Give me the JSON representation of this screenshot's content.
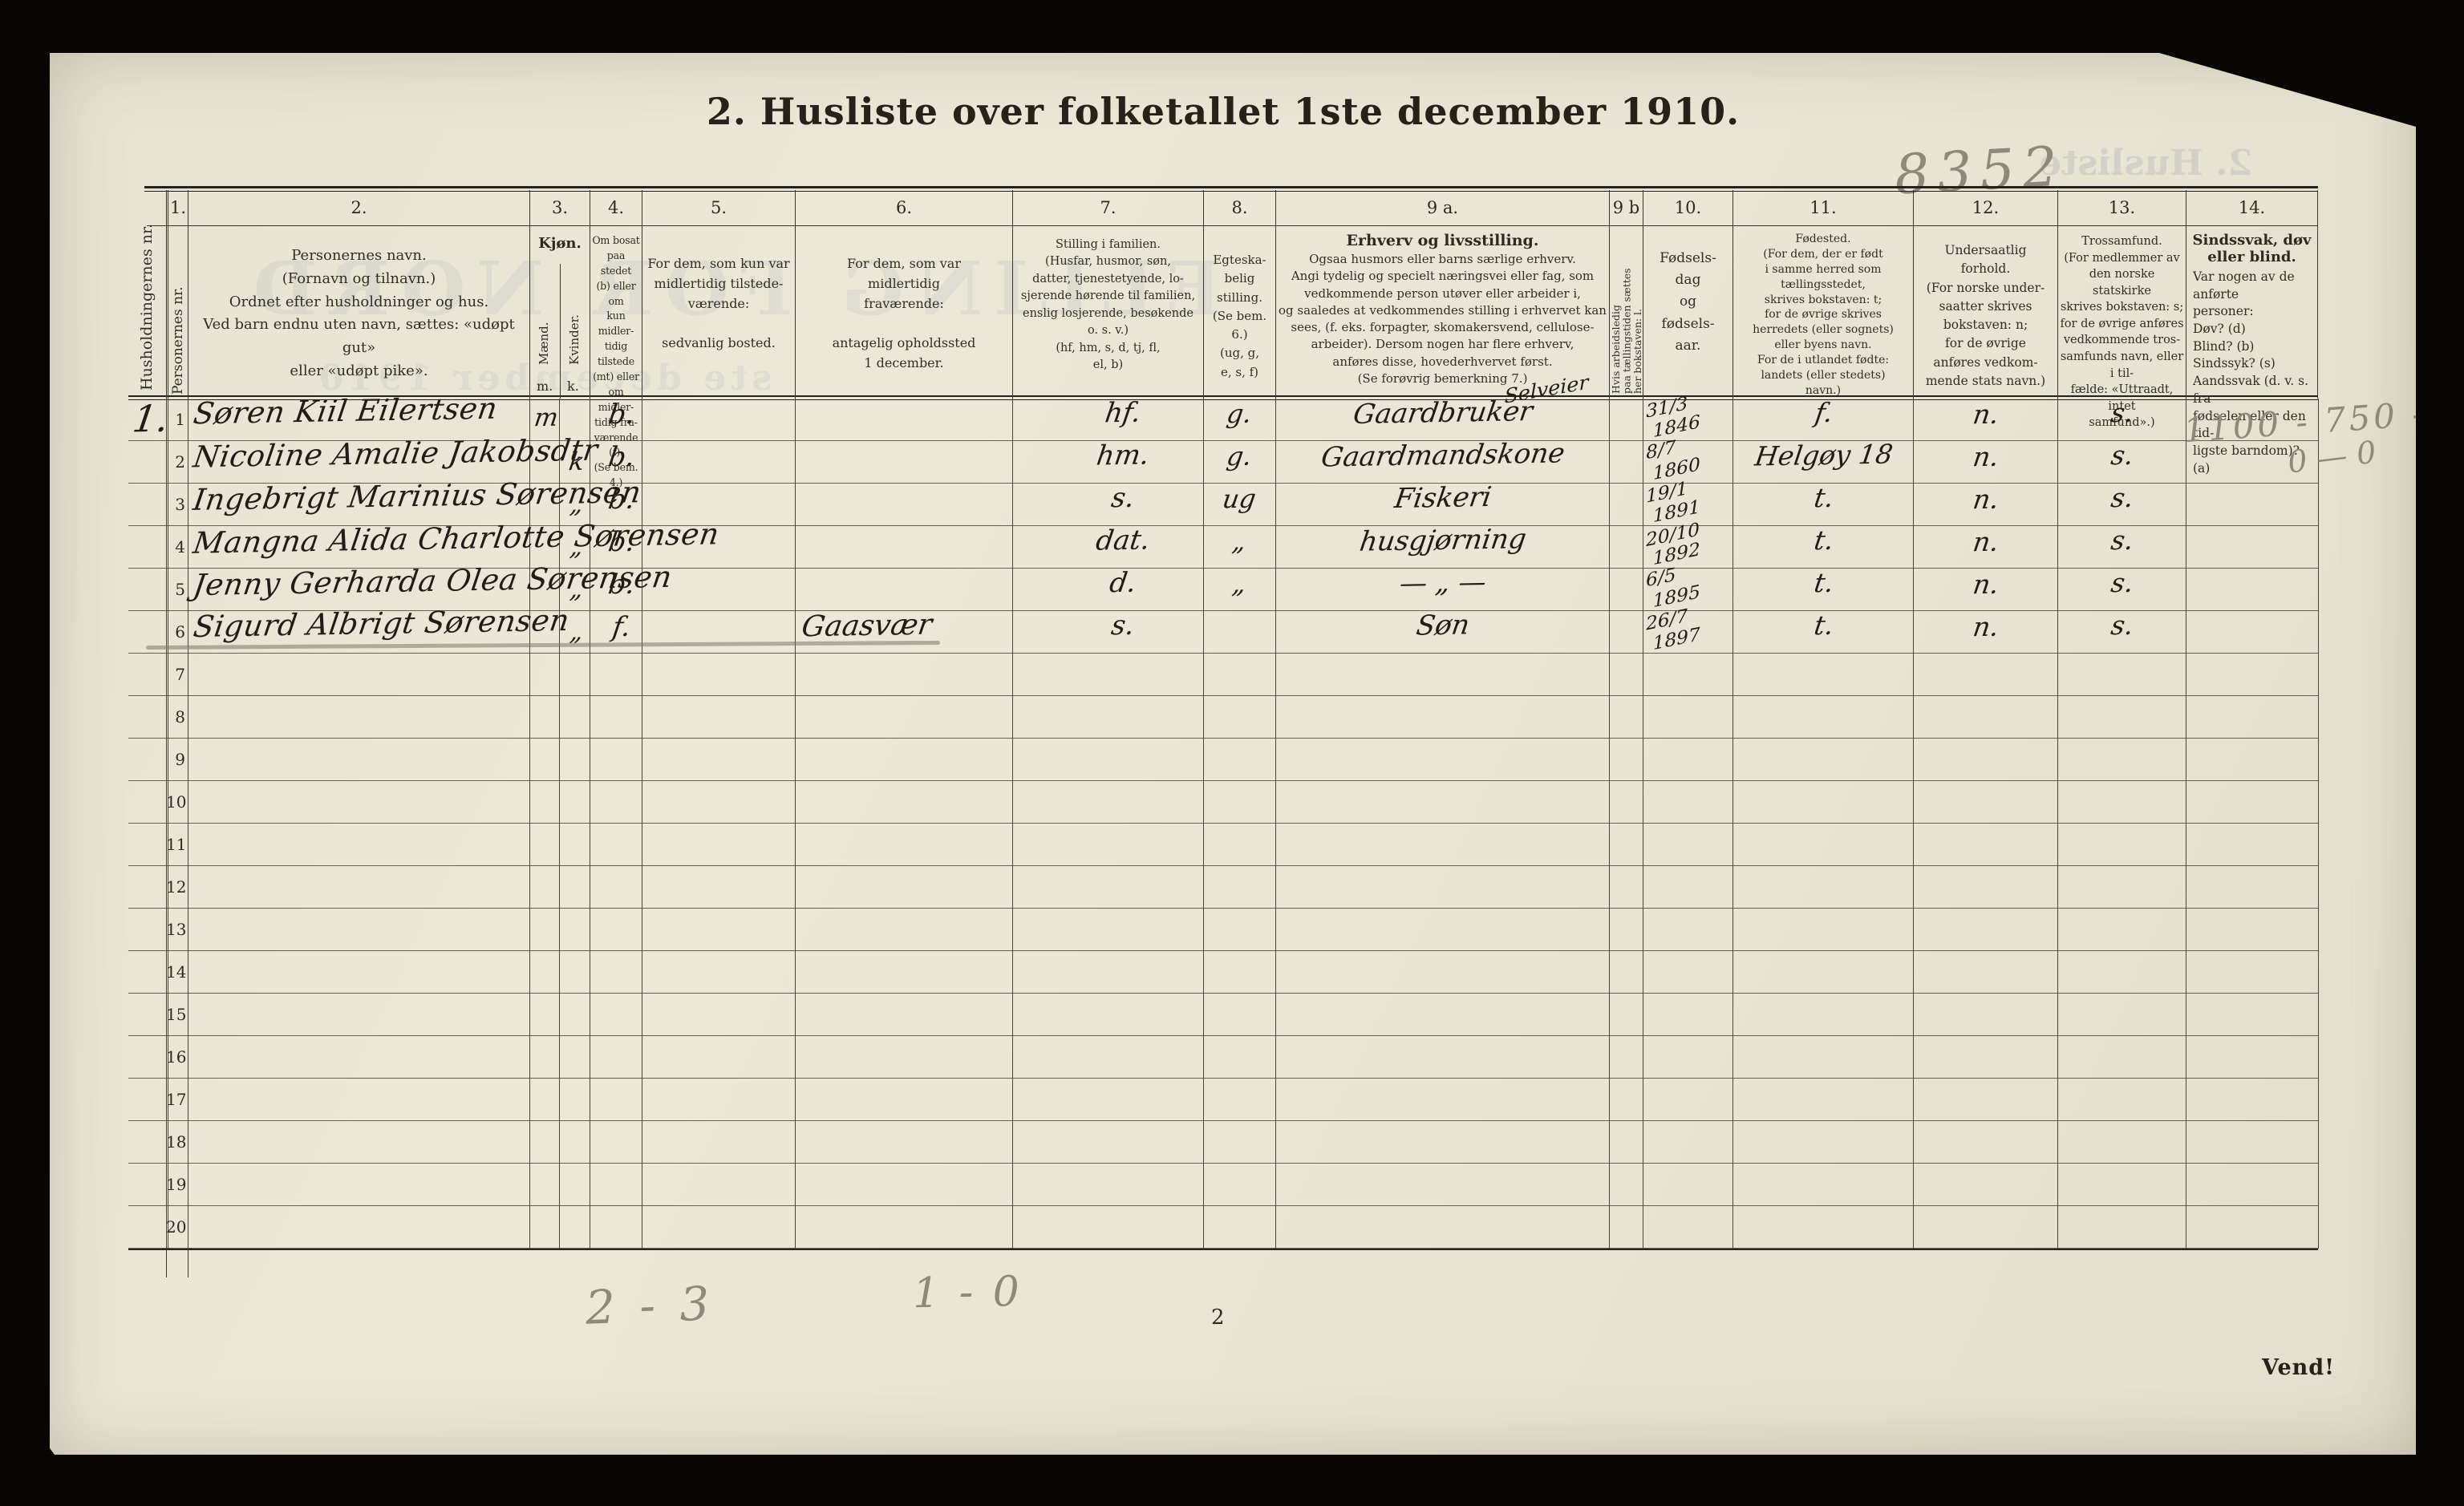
{
  "page": {
    "title": "2. Husliste over folketallet 1ste december 1910.",
    "page_number": "2",
    "turn_note": "Vend!"
  },
  "header": {
    "hh": {
      "vertical": "Husholdningernes nr."
    },
    "pn": {
      "num": "1.",
      "vertical": "Personernes nr."
    },
    "c2": {
      "num": "2.",
      "text": "Personernes navn.\n(Fornavn og tilnavn.)\nOrdnet efter husholdninger og hus.\nVed barn endnu uten navn, sættes: «udøpt gut»\neller «udøpt pike»."
    },
    "c3": {
      "num": "3.",
      "label": "Kjøn.",
      "male": "Mænd.",
      "female": "Kvinder.",
      "male_abbr": "m.",
      "female_abbr": "k."
    },
    "c4": {
      "num": "4.",
      "text": "Om bosat\npaa stedet\n(b) eller om\nkun midler-\ntidig tilstede\n(mt) eller\nom midler-\ntidig fra-\nværende (f).\n(Se bem. 4.)"
    },
    "c5": {
      "num": "5.",
      "text": "For dem, som kun var\nmidlertidig tilstede-\nværende:\n\nsedvanlig bosted."
    },
    "c6": {
      "num": "6.",
      "text": "For dem, som var\nmidlertidig\nfraværende:\n\nantagelig opholdssted\n1 december."
    },
    "c7": {
      "num": "7.",
      "text": "Stilling i familien.\n(Husfar, husmor, søn,\ndatter, tjenestetyende, lo-\nsjerende hørende til familien,\nenslig losjerende, besøkende\no. s. v.)\n(hf, hm, s, d, tj, fl,\nel, b)"
    },
    "c8": {
      "num": "8.",
      "text": "Egteska-\nbelig\nstilling.\n(Se bem. 6.)\n(ug, g,\ne, s, f)"
    },
    "c9a": {
      "num": "9 a.",
      "title": "Erhverv og livsstilling.",
      "text": "Ogsaa husmors eller barns særlige erhverv.\nAngi tydelig og specielt næringsvei eller fag, som\nvedkommende person utøver eller arbeider i,\nog saaledes at vedkommendes stilling i erhvervet kan\nsees, (f. eks. forpagter, skomakersvend, cellulose-\narbeider).  Dersom nogen har flere erhverv,\nanføres disse, hovederhvervet først.\n(Se forøvrig bemerkning 7.)"
    },
    "c9b": {
      "num": "9 b",
      "vertical": "Hvis arbeidsledig\npaa tællingstiden sættes\nher bokstaven: l."
    },
    "c10": {
      "num": "10.",
      "text": "Fødsels-\ndag\nog\nfødsels-\naar."
    },
    "c11": {
      "num": "11.",
      "text": "Fødested.\n(For dem, der er født\ni samme herred som\ntællingsstedet,\nskrives bokstaven: t;\nfor de øvrige skrives\nherredets (eller sognets)\neller byens navn.\nFor de i utlandet fødte:\nlandets (eller stedets)\nnavn.)"
    },
    "c12": {
      "num": "12.",
      "text": "Undersaatlig\nforhold.\n(For norske under-\nsaatter skrives\nbokstaven: n;\nfor de øvrige\nanføres vedkom-\nmende stats navn.)"
    },
    "c13": {
      "num": "13.",
      "text": "Trossamfund.\n(For medlemmer av\nden norske statskirke\nskrives bokstaven: s;\nfor de øvrige anføres\nvedkommende tros-\nsamfunds navn, eller i til-\nfælde: «Uttraadt, intet\nsamfund».)"
    },
    "c14": {
      "num": "14.",
      "title": "Sindssvak, døv\neller blind.",
      "text": "Var nogen av de anførte\n        personer:\nDøv?             (d)\nBlind?           (b)\nSindssyk?     (s)\nAandssvak (d. v. s. fra\nfødselen eller den tid-\nligste barndom)? (a)"
    }
  },
  "rows": [
    {
      "hh": "1.",
      "nr": "1",
      "name": "Søren Kiil Eilertsen",
      "sex_m": "m",
      "sex_k": "",
      "c4": "b.",
      "c6": "",
      "c7": "hf.",
      "c8": "g.",
      "c9a": "Gaardbruker",
      "c9a_super": "Selveier",
      "c10a": "31/3",
      "c10b": "1846",
      "c11": "f.",
      "c12": "n.",
      "c13": "s."
    },
    {
      "hh": "",
      "nr": "2",
      "name": "Nicoline Amalie Jakobsdtr",
      "sex_m": "",
      "sex_k": "k",
      "c4": "b.",
      "c6": "",
      "c7": "hm.",
      "c8": "g.",
      "c9a": "Gaardmandskone",
      "c9a_super": "",
      "c10a": "8/7",
      "c10b": "1860",
      "c11": "Helgøy 18",
      "c12": "n.",
      "c13": "s."
    },
    {
      "hh": "",
      "nr": "3",
      "name": "Ingebrigt Marinius Sørensen",
      "sex_m": "",
      "sex_k": "„",
      "c4": "b.",
      "c6": "",
      "c7": "s.",
      "c8": "ug",
      "c9a": "Fiskeri",
      "c9a_super": "",
      "c10a": "19/1",
      "c10b": "1891",
      "c11": "t.",
      "c12": "n.",
      "c13": "s."
    },
    {
      "hh": "",
      "nr": "4",
      "name": "Mangna Alida Charlotte Sørensen",
      "sex_m": "",
      "sex_k": "„",
      "c4": "b.",
      "c6": "",
      "c7": "dat.",
      "c8": "„",
      "c9a": "husgjørning",
      "c9a_super": "",
      "c10a": "20/10",
      "c10b": "1892",
      "c11": "t.",
      "c12": "n.",
      "c13": "s."
    },
    {
      "hh": "",
      "nr": "5",
      "name": "Jenny Gerharda Olea Sørensen",
      "sex_m": "",
      "sex_k": "„",
      "c4": "b.",
      "c6": "",
      "c7": "d.",
      "c8": "„",
      "c9a": "— „ —",
      "c9a_super": "",
      "c10a": "6/5",
      "c10b": "1895",
      "c11": "t.",
      "c12": "n.",
      "c13": "s."
    },
    {
      "hh": "",
      "nr": "6",
      "name": "Sigurd Albrigt Sørensen",
      "sex_m": "",
      "sex_k": "„",
      "c4": "f.",
      "c6": "Gaasvær",
      "c7": "s.",
      "c8": "",
      "c9a": "Søn",
      "c9a_super": "",
      "c10a": "26/7",
      "c10b": "1897",
      "c11": "t.",
      "c12": "n.",
      "c13": "s.",
      "strike": true
    },
    {
      "nr": "7"
    },
    {
      "nr": "8"
    },
    {
      "nr": "9"
    },
    {
      "nr": "10"
    },
    {
      "nr": "11"
    },
    {
      "nr": "12"
    },
    {
      "nr": "13"
    },
    {
      "nr": "14"
    },
    {
      "nr": "15"
    },
    {
      "nr": "16"
    },
    {
      "nr": "17"
    },
    {
      "nr": "18"
    },
    {
      "nr": "19"
    },
    {
      "nr": "20"
    }
  ],
  "annotations": {
    "archive_number": "8352",
    "col14_note_line1": "1100 - 750 - 1",
    "col14_note_line2": "0 — 0",
    "tally_left": "2 - 3",
    "tally_mid": "1 - 0"
  },
  "bleedthrough": {
    "ghost_title": "2. Husliste",
    "ghost_big": "ELLING FOR NORD",
    "ghost_date": "ste december 1910"
  }
}
